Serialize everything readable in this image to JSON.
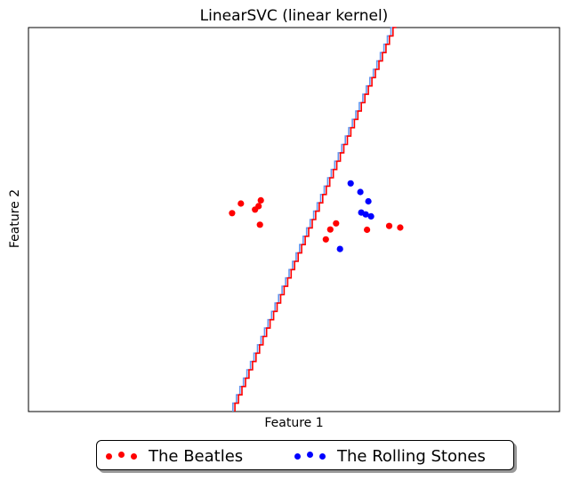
{
  "chart_data": {
    "type": "scatter",
    "title": "LinearSVC (linear kernel)",
    "xlabel": "Feature 1",
    "ylabel": "Feature 2",
    "xlim": [
      -6,
      6
    ],
    "ylim": [
      -6,
      6
    ],
    "grid": false,
    "legend_position": "bottom-center",
    "series": [
      {
        "name": "The Beatles",
        "color": "#ff0000",
        "points": [
          [
            -1.4,
            0.2
          ],
          [
            -1.2,
            0.5
          ],
          [
            -0.88,
            0.31
          ],
          [
            -0.8,
            0.42
          ],
          [
            -0.75,
            0.6
          ],
          [
            -0.77,
            -0.16
          ],
          [
            0.82,
            -0.31
          ],
          [
            0.95,
            -0.12
          ],
          [
            1.65,
            -0.32
          ],
          [
            2.15,
            -0.2
          ],
          [
            2.4,
            -0.25
          ],
          [
            0.72,
            -0.62
          ]
        ]
      },
      {
        "name": "The Rolling Stones",
        "color": "#0000ff",
        "points": [
          [
            1.28,
            1.13
          ],
          [
            1.68,
            0.57
          ],
          [
            1.5,
            0.86
          ],
          [
            1.52,
            0.22
          ],
          [
            1.62,
            0.16
          ],
          [
            1.74,
            0.1
          ],
          [
            1.04,
            -0.92
          ]
        ]
      }
    ],
    "decision_boundary": {
      "style": "stepped",
      "colors": [
        "#ff0000",
        "#6495ed"
      ],
      "points": [
        [
          2.3,
          6.0
        ],
        [
          -1.35,
          -6.0
        ]
      ]
    }
  }
}
